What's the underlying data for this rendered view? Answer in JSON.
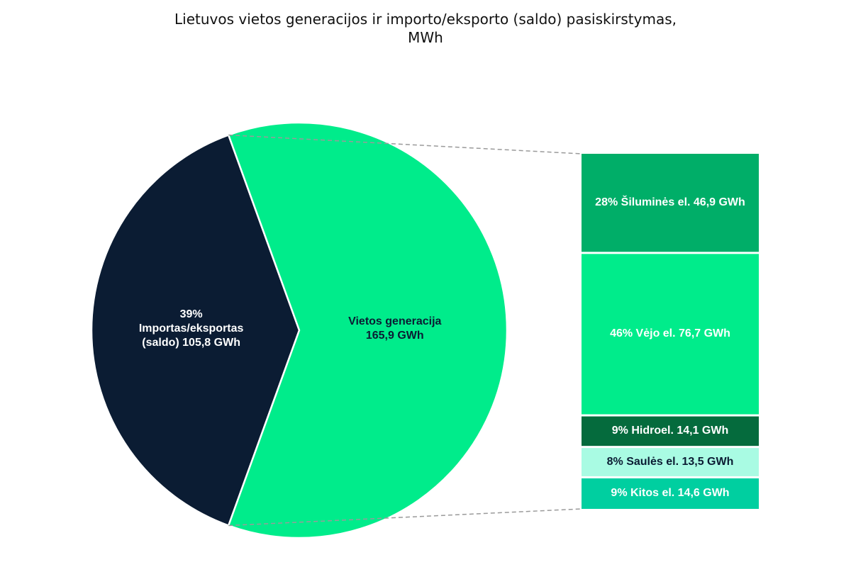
{
  "chart_data": {
    "type": "pie",
    "title_line1": "Lietuvos vietos generacijos ir importo/eksporto (saldo) pasiskirstymas,",
    "title_line2": "MWh",
    "slices": [
      {
        "label_pct": "39%",
        "label_name": "Importas/eksportas",
        "label_name2": "(saldo)  105,8 GWh",
        "value": 105.8,
        "color": "#0b1c33",
        "text_color": "#ffffff"
      },
      {
        "label_pct": "",
        "label_name": "Vietos generacija",
        "label_name2": "165,9 GWh",
        "value": 165.9,
        "color": "#00ec8b",
        "text_color": "#0b1c33"
      }
    ],
    "breakdown": {
      "of_slice": "Vietos generacija",
      "items": [
        {
          "label": "28% Šiluminės el.  46,9 GWh",
          "value": 46.9,
          "color": "#00ae68",
          "text_color": "#ffffff"
        },
        {
          "label": "46% Vėjo el.  76,7 GWh",
          "value": 76.7,
          "color": "#00ec8b",
          "text_color": "#ffffff"
        },
        {
          "label": "9% Hidroel.  14,1 GWh",
          "value": 14.1,
          "color": "#056b3d",
          "text_color": "#ffffff"
        },
        {
          "label": "8% Saulės el.  13,5 GWh",
          "value": 13.5,
          "color": "#a9fbe3",
          "text_color": "#0b1c33"
        },
        {
          "label": "9% Kitos el.  14,6 GWh",
          "value": 14.6,
          "color": "#00cfa0",
          "text_color": "#ffffff"
        }
      ]
    }
  }
}
